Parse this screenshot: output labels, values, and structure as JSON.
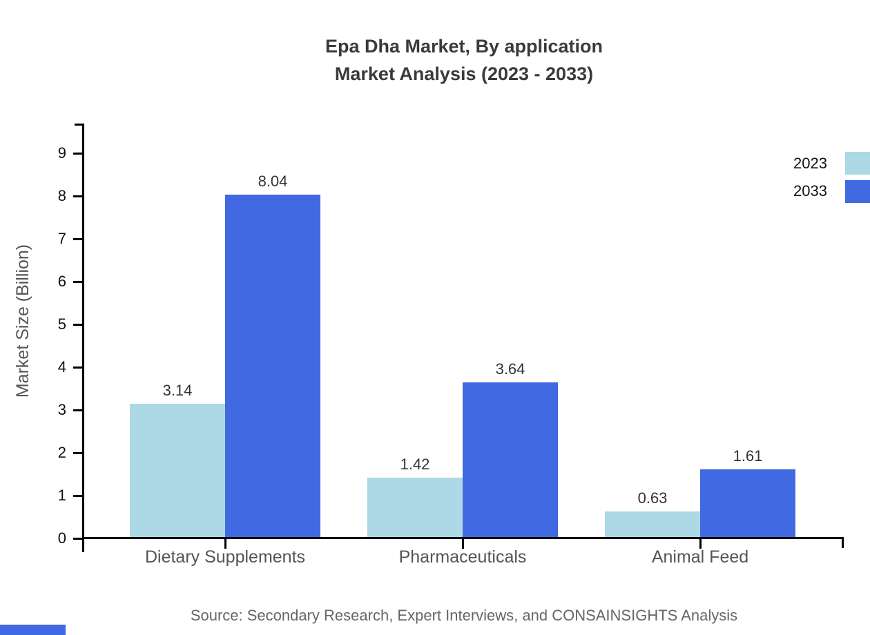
{
  "title": {
    "line1": "Epa Dha Market, By application",
    "line2": "Market Analysis (2023 - 2033)"
  },
  "footer": {
    "source": "Source: Secondary Research, Expert Interviews, and CONSAINSIGHTS Analysis"
  },
  "decorations": {
    "clipped_bottom_left_bar_color": "#4169E1"
  },
  "chart_data": {
    "type": "bar",
    "title": "Epa Dha Market, By application Market Analysis (2023 - 2033)",
    "categories": [
      "Dietary Supplements",
      "Pharmaceuticals",
      "Animal Feed"
    ],
    "series": [
      {
        "name": "2023",
        "color": "#ADD8E6",
        "values": [
          3.14,
          1.42,
          0.63
        ]
      },
      {
        "name": "2033",
        "color": "#4169E1",
        "values": [
          8.04,
          3.64,
          1.61
        ]
      }
    ],
    "xlabel": "",
    "ylabel": "Market Size (Billion)",
    "ylim": [
      0,
      9.65
    ],
    "yticks": [
      0,
      1,
      2,
      3,
      4,
      5,
      6,
      7,
      8,
      9
    ],
    "grid": false,
    "legend_position": "top-right",
    "value_labels": true,
    "value_label_decimals": 2
  }
}
